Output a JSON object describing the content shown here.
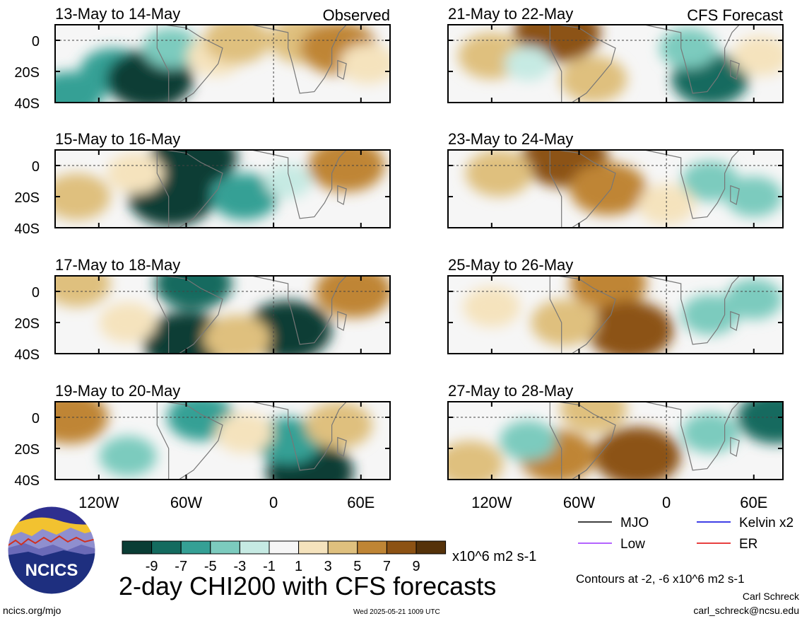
{
  "chart_data": [
    {
      "type": "heatmap",
      "column": "observed",
      "title": "13-May to 14-May",
      "label": "Observed",
      "x": [
        -150,
        -120,
        -90,
        -60,
        -30,
        0,
        30,
        60,
        80
      ],
      "y": [
        10,
        0,
        -20,
        -40
      ],
      "features": [
        {
          "lon": -110,
          "lat": -20,
          "value": -5
        },
        {
          "lon": -85,
          "lat": -25,
          "value": -9
        },
        {
          "lon": -70,
          "lat": -5,
          "value": -3
        },
        {
          "lon": -40,
          "lat": -10,
          "value": 3
        },
        {
          "lon": -25,
          "lat": 0,
          "value": 5
        },
        {
          "lon": 20,
          "lat": 0,
          "value": 5
        },
        {
          "lon": 45,
          "lat": -5,
          "value": 7
        },
        {
          "lon": -140,
          "lat": -35,
          "value": -5
        },
        {
          "lon": 65,
          "lat": -15,
          "value": 3
        }
      ]
    },
    {
      "type": "heatmap",
      "column": "observed",
      "title": "15-May to 16-May",
      "features": [
        {
          "lon": -135,
          "lat": -20,
          "value": 5
        },
        {
          "lon": -70,
          "lat": -20,
          "value": -9
        },
        {
          "lon": -55,
          "lat": 5,
          "value": -9
        },
        {
          "lon": -20,
          "lat": -20,
          "value": -5
        },
        {
          "lon": 10,
          "lat": -10,
          "value": -1
        },
        {
          "lon": 50,
          "lat": 0,
          "value": 7
        },
        {
          "lon": -95,
          "lat": -5,
          "value": 3
        }
      ]
    },
    {
      "type": "heatmap",
      "column": "observed",
      "title": "17-May to 18-May",
      "features": [
        {
          "lon": -135,
          "lat": 5,
          "value": 5
        },
        {
          "lon": -55,
          "lat": 5,
          "value": -7
        },
        {
          "lon": -60,
          "lat": -32,
          "value": -9
        },
        {
          "lon": 10,
          "lat": -25,
          "value": -9
        },
        {
          "lon": -25,
          "lat": -30,
          "value": 5
        },
        {
          "lon": 55,
          "lat": 0,
          "value": 7
        },
        {
          "lon": -100,
          "lat": -20,
          "value": 3
        }
      ]
    },
    {
      "type": "heatmap",
      "column": "observed",
      "title": "19-May to 20-May",
      "features": [
        {
          "lon": -140,
          "lat": 0,
          "value": 7
        },
        {
          "lon": -100,
          "lat": -25,
          "value": -3
        },
        {
          "lon": -50,
          "lat": 0,
          "value": -5
        },
        {
          "lon": 25,
          "lat": -35,
          "value": -9
        },
        {
          "lon": 10,
          "lat": -15,
          "value": -5
        },
        {
          "lon": 45,
          "lat": -5,
          "value": 5
        },
        {
          "lon": -20,
          "lat": -10,
          "value": 3
        }
      ]
    },
    {
      "type": "heatmap",
      "column": "forecast",
      "title": "21-May to 22-May",
      "label": "CFS Forecast",
      "features": [
        {
          "lon": -75,
          "lat": 5,
          "value": 9
        },
        {
          "lon": -50,
          "lat": -25,
          "value": 5
        },
        {
          "lon": -120,
          "lat": -10,
          "value": 5
        },
        {
          "lon": 30,
          "lat": -25,
          "value": -7
        },
        {
          "lon": 15,
          "lat": -5,
          "value": -3
        },
        {
          "lon": 65,
          "lat": -10,
          "value": 3
        },
        {
          "lon": -95,
          "lat": -15,
          "value": -1
        }
      ]
    },
    {
      "type": "heatmap",
      "column": "forecast",
      "title": "23-May to 24-May",
      "features": [
        {
          "lon": -70,
          "lat": 5,
          "value": 9
        },
        {
          "lon": -40,
          "lat": -15,
          "value": 7
        },
        {
          "lon": -115,
          "lat": -5,
          "value": 5
        },
        {
          "lon": 30,
          "lat": -10,
          "value": -3
        },
        {
          "lon": 60,
          "lat": -20,
          "value": -3
        },
        {
          "lon": 0,
          "lat": -25,
          "value": 3
        }
      ]
    },
    {
      "type": "heatmap",
      "column": "forecast",
      "title": "25-May to 26-May",
      "features": [
        {
          "lon": -40,
          "lat": 5,
          "value": 7
        },
        {
          "lon": -25,
          "lat": -25,
          "value": 9
        },
        {
          "lon": -70,
          "lat": -20,
          "value": 5
        },
        {
          "lon": 30,
          "lat": -15,
          "value": -3
        },
        {
          "lon": 60,
          "lat": -5,
          "value": -3
        },
        {
          "lon": -120,
          "lat": -10,
          "value": 3
        }
      ]
    },
    {
      "type": "heatmap",
      "column": "forecast",
      "title": "27-May to 28-May",
      "features": [
        {
          "lon": -50,
          "lat": 5,
          "value": 5
        },
        {
          "lon": -20,
          "lat": -25,
          "value": 9
        },
        {
          "lon": -75,
          "lat": -25,
          "value": 7
        },
        {
          "lon": 30,
          "lat": -10,
          "value": -3
        },
        {
          "lon": -95,
          "lat": -15,
          "value": -3
        },
        {
          "lon": 75,
          "lat": 0,
          "value": -7
        },
        {
          "lon": -135,
          "lat": -30,
          "value": 5
        }
      ]
    }
  ],
  "axes": {
    "y_ticks": [
      "0",
      "20S",
      "40S"
    ],
    "x_ticks": [
      "120W",
      "60W",
      "0",
      "60E"
    ],
    "x_tick_values": [
      -120,
      -60,
      0,
      60
    ],
    "y_tick_values": [
      0,
      -20,
      -40
    ]
  },
  "colorbar": {
    "labels": [
      "-9",
      "-7",
      "-5",
      "-3",
      "-1",
      "1",
      "3",
      "5",
      "7",
      "9"
    ],
    "colors": [
      "#0a3d35",
      "#146b5f",
      "#35a095",
      "#7ccbbe",
      "#c6eae3",
      "#f6f6f6",
      "#f5e3bd",
      "#dfc07e",
      "#bf8535",
      "#8c5214",
      "#55320a"
    ],
    "units": "x10^6 m2 s-1"
  },
  "legend": {
    "items": [
      {
        "label": "MJO",
        "color": "#000000"
      },
      {
        "label": "Kelvin x2",
        "color": "#0000dd"
      },
      {
        "label": "Low",
        "color": "#9b30ff"
      },
      {
        "label": "ER",
        "color": "#e00000"
      }
    ],
    "contour_note": "Contours at -2, -6 x10^6 m2 s-1"
  },
  "title": "2-day CHI200 with CFS forecasts",
  "logo_text": "NCICS",
  "footer": {
    "left": "ncics.org/mjo",
    "center": "Wed 2025-05-21 1009 UTC",
    "author": "Carl Schreck",
    "email": "carl_schreck@ncsu.edu"
  }
}
